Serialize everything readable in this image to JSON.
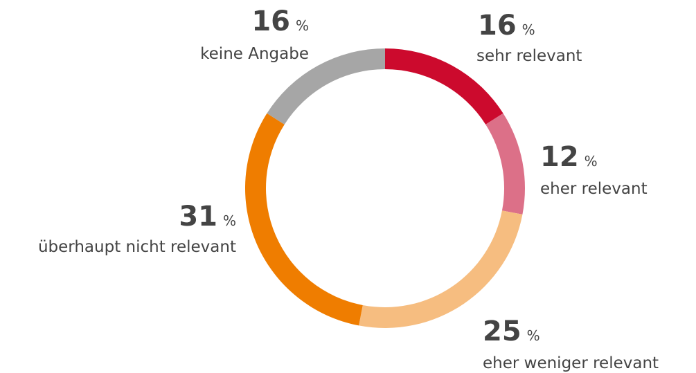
{
  "chart_data": {
    "type": "donut",
    "categories": [
      "sehr relevant",
      "eher relevant",
      "eher weniger relevant",
      "überhaupt nicht relevant",
      "keine Angabe"
    ],
    "values": [
      16,
      12,
      25,
      31,
      16
    ],
    "unit": "%",
    "colors": [
      "#cc0a2d",
      "#dc7088",
      "#f6bd80",
      "#ef7d00",
      "#a6a6a6"
    ]
  }
}
